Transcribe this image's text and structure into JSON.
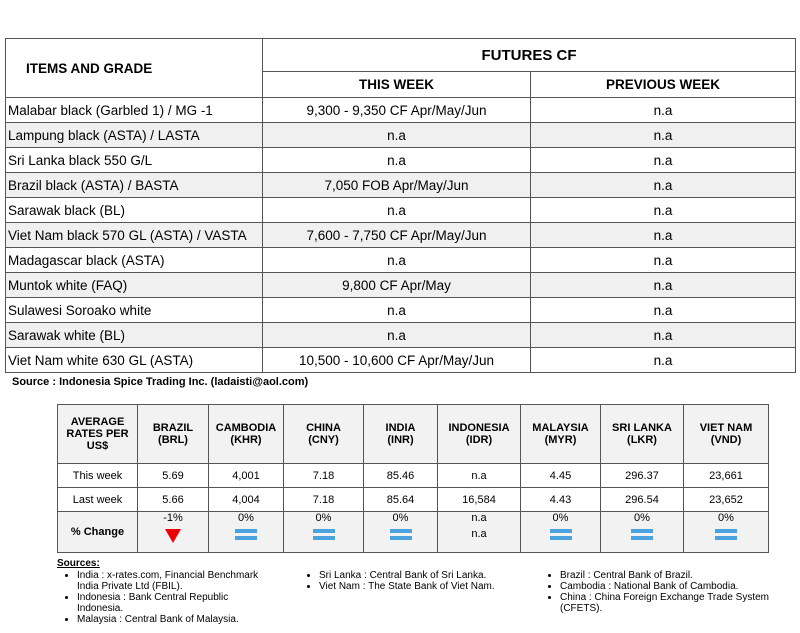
{
  "futures_table": {
    "headers": {
      "items": "ITEMS AND GRADE",
      "futures": "FUTURES CF",
      "this_week": "THIS WEEK",
      "previous_week": "PREVIOUS WEEK"
    },
    "rows": [
      [
        "Malabar black (Garbled 1) / MG -1",
        "9,300 - 9,350 CF Apr/May/Jun",
        "n.a"
      ],
      [
        "Lampung black (ASTA) / LASTA",
        "n.a",
        "n.a"
      ],
      [
        "Sri Lanka black 550 G/L",
        "n.a",
        "n.a"
      ],
      [
        "Brazil black (ASTA) / BASTA",
        "7,050 FOB Apr/May/Jun",
        "n.a"
      ],
      [
        "Sarawak black (BL)",
        "n.a",
        "n.a"
      ],
      [
        "Viet Nam black 570 GL (ASTA) / VASTA",
        "7,600 - 7,750 CF Apr/May/Jun",
        "n.a"
      ],
      [
        "Madagascar black (ASTA)",
        "n.a",
        "n.a"
      ],
      [
        "Muntok white (FAQ)",
        "9,800 CF Apr/May",
        "n.a"
      ],
      [
        "Sulawesi Soroako white",
        "n.a",
        "n.a"
      ],
      [
        "Sarawak  white (BL)",
        "n.a",
        "n.a"
      ],
      [
        "Viet Nam white 630 GL (ASTA)",
        "10,500 - 10,600 CF Apr/May/Jun",
        "n.a"
      ]
    ]
  },
  "source": "Source : Indonesia Spice Trading Inc. (ladaisti@aol.com)",
  "rates_table": {
    "corner": "AVERAGE RATES PER US$",
    "columns": [
      {
        "name": "BRAZIL",
        "code": "(BRL)"
      },
      {
        "name": "CAMBODIA",
        "code": "(KHR)"
      },
      {
        "name": "CHINA",
        "code": "(CNY)"
      },
      {
        "name": "INDIA",
        "code": "(INR)"
      },
      {
        "name": "INDONESIA",
        "code": "(IDR)"
      },
      {
        "name": "MALAYSIA",
        "code": "(MYR)"
      },
      {
        "name": "SRI LANKA",
        "code": "(LKR)"
      },
      {
        "name": "VIET NAM",
        "code": "(VND)"
      }
    ],
    "rows": [
      {
        "label": "This week",
        "values": [
          "5.69",
          "4,001",
          "7.18",
          "85.46",
          "n.a",
          "4.45",
          "296.37",
          "23,661"
        ]
      },
      {
        "label": "Last week",
        "values": [
          "5.66",
          "4,004",
          "7.18",
          "85.64",
          "16,584",
          "4.43",
          "296.54",
          "23,652"
        ]
      }
    ],
    "change": {
      "label": "% Change",
      "values": [
        "-1%",
        "0%",
        "0%",
        "0%",
        "n.a",
        "0%",
        "0%",
        "0%"
      ],
      "indonesia_note": "n.a"
    }
  },
  "sources": {
    "title": "Sources:",
    "columns": [
      [
        "India : x-rates.com, Financial Benchmark India Private Ltd (FBIL).",
        "Indonesia : Bank Central Republic Indonesia.",
        "Malaysia : Central Bank of Malaysia."
      ],
      [
        "Sri Lanka : Central Bank of Sri Lanka.",
        "Viet Nam : The State Bank of Viet Nam."
      ],
      [
        "Brazil :  Central Bank of Brazil.",
        "Cambodia : National Bank of Cambodia.",
        "China : China Foreign Exchange Trade System (CFETS)."
      ]
    ]
  }
}
